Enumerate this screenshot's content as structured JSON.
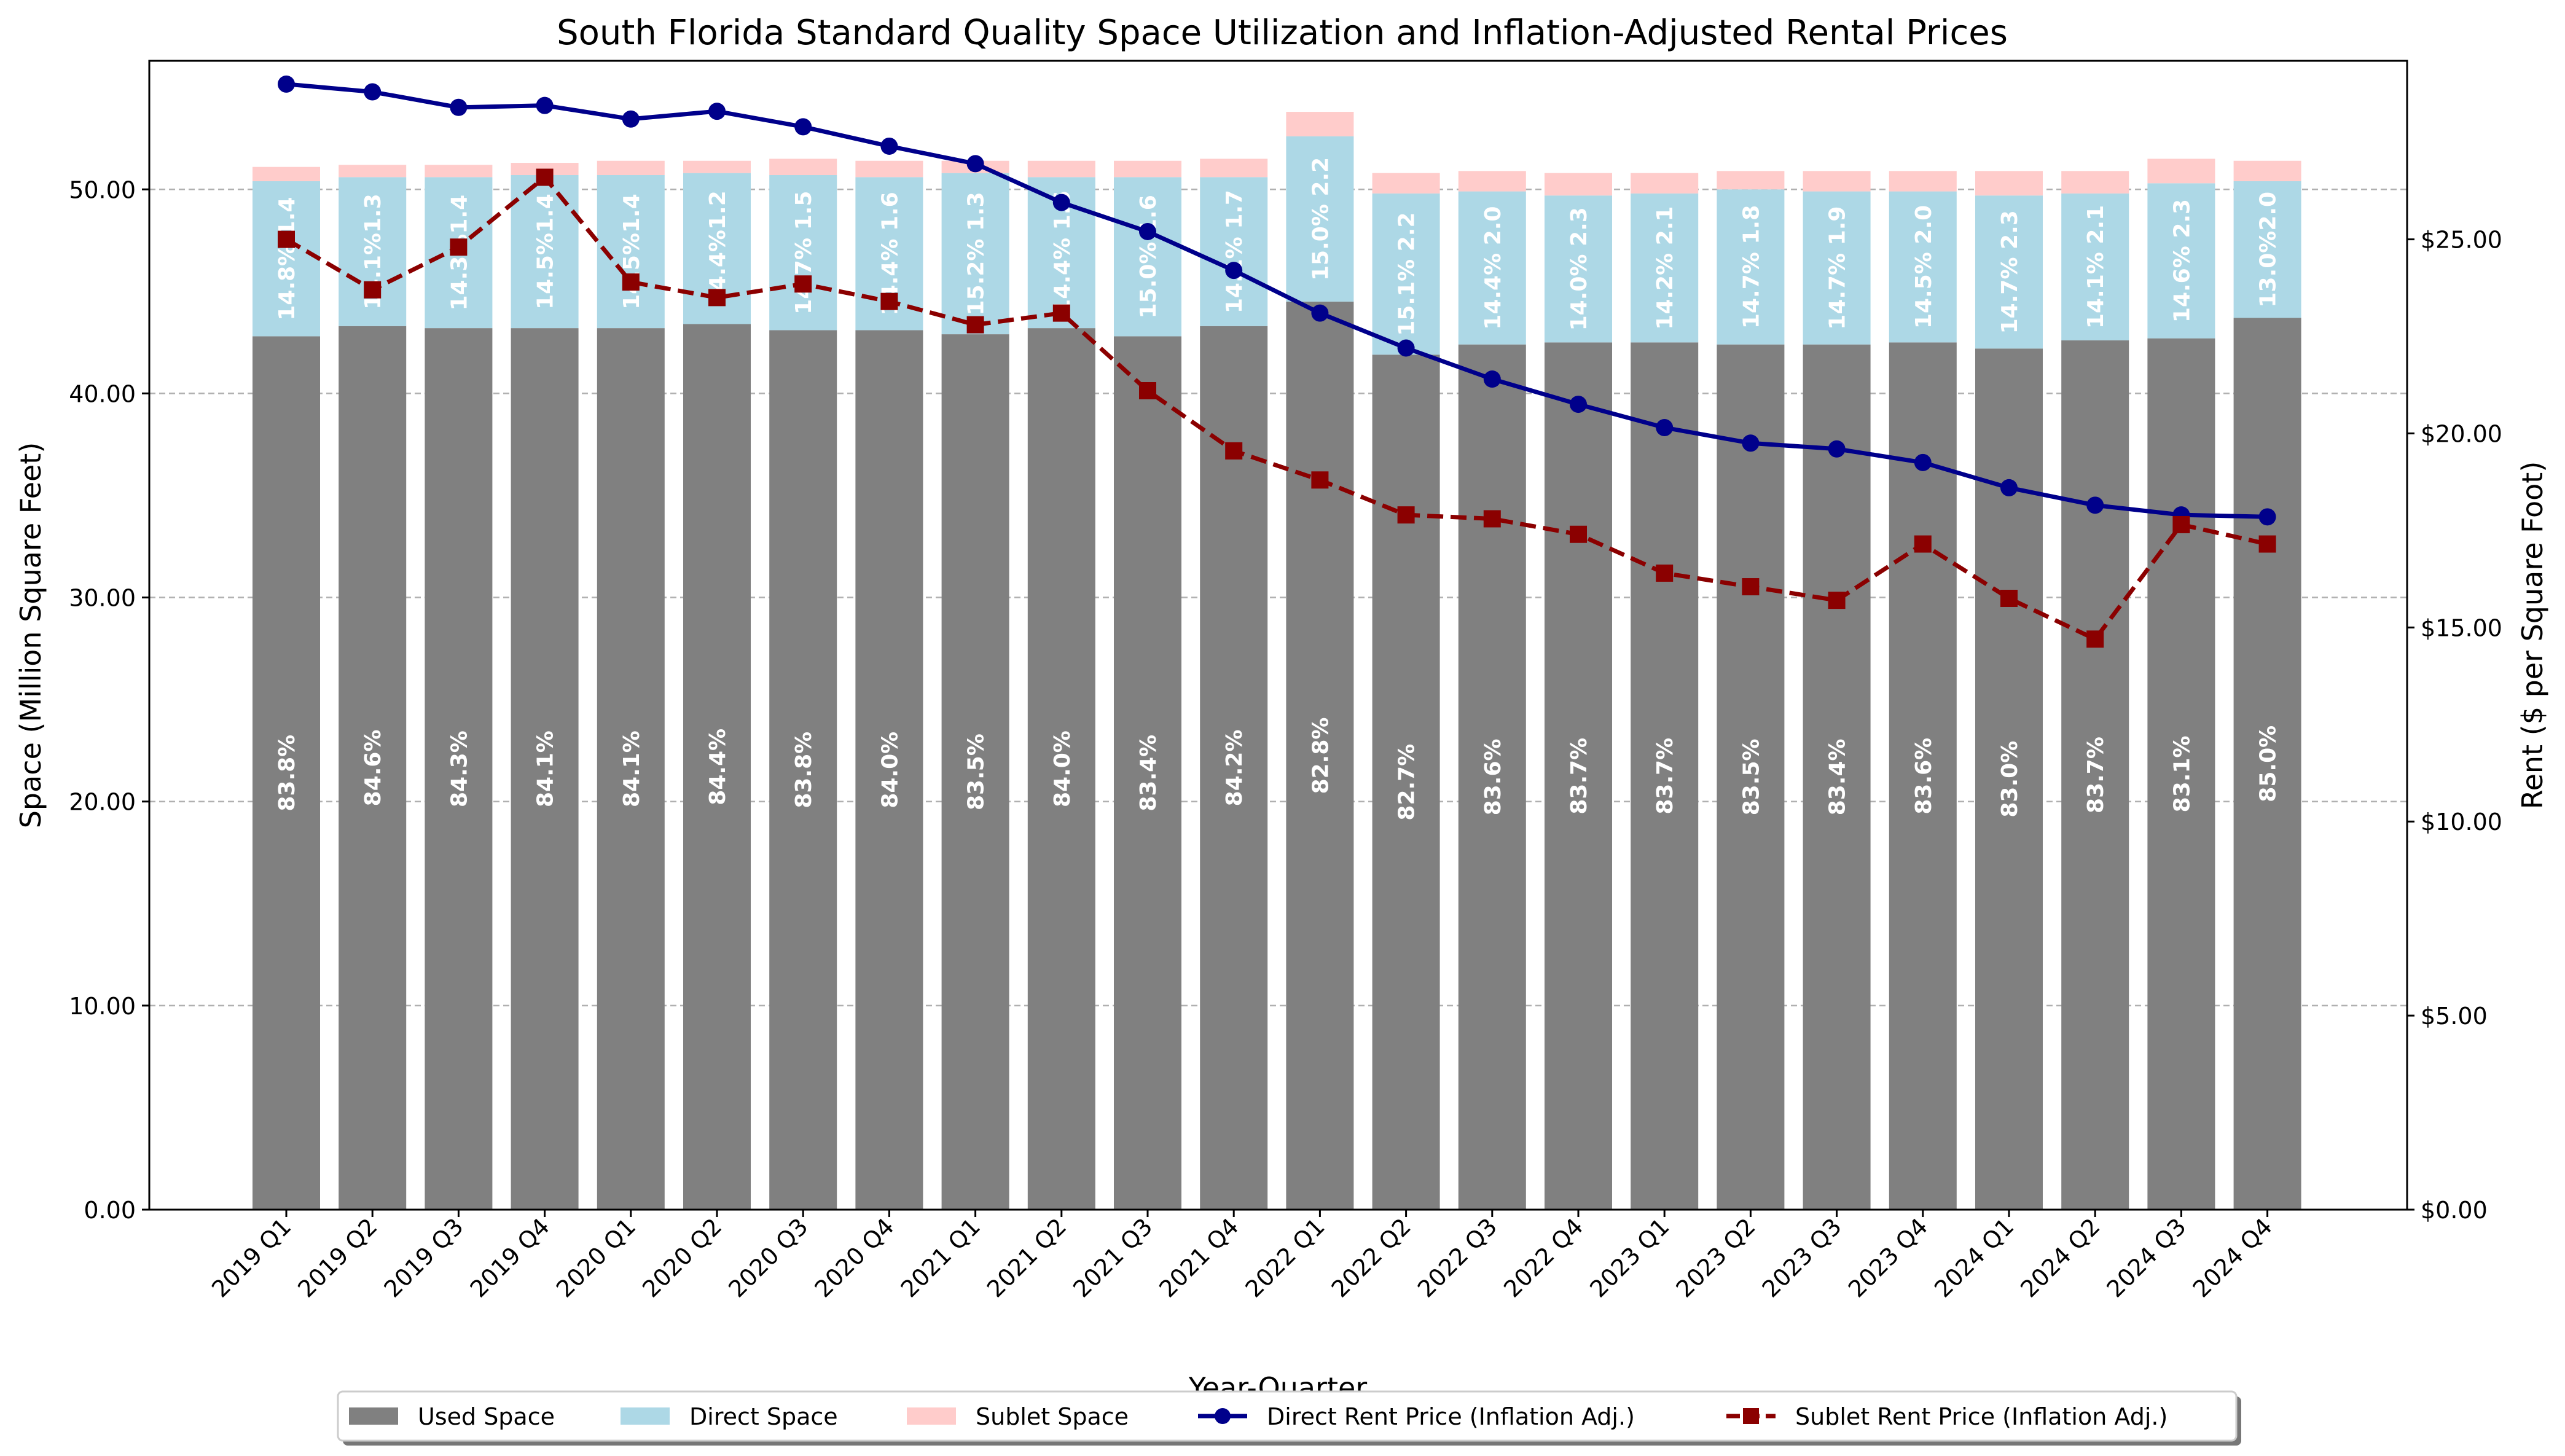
{
  "chart_data": {
    "type": "bar",
    "title": "South Florida Standard Quality Space Utilization and Inflation-Adjusted Rental Prices",
    "xlabel": "Year-Quarter",
    "ylabel": "Space (Million Square Feet)",
    "y2label": "Rent ($ per Square Foot)",
    "ylim": [
      0,
      56.3
    ],
    "y2lim": [
      0,
      29.6
    ],
    "yticks": [
      "0.00",
      "10.00",
      "20.00",
      "30.00",
      "40.00",
      "50.00"
    ],
    "y2ticks": [
      "$0.00",
      "$5.00",
      "$10.00",
      "$15.00",
      "$20.00",
      "$25.00"
    ],
    "grid": "horizontal dashed",
    "legend_position": "bottom-center",
    "categories": [
      "2019 Q1",
      "2019 Q2",
      "2019 Q3",
      "2019 Q4",
      "2020 Q1",
      "2020 Q2",
      "2020 Q3",
      "2020 Q4",
      "2021 Q1",
      "2021 Q2",
      "2021 Q3",
      "2021 Q4",
      "2022 Q1",
      "2022 Q2",
      "2022 Q3",
      "2022 Q4",
      "2023 Q1",
      "2023 Q2",
      "2023 Q3",
      "2023 Q4",
      "2024 Q1",
      "2024 Q2",
      "2024 Q3",
      "2024 Q4"
    ],
    "series": [
      {
        "name": "Used Space",
        "kind": "bar",
        "color": "#808080",
        "values": [
          42.8,
          43.3,
          43.2,
          43.2,
          43.2,
          43.4,
          43.1,
          43.1,
          42.9,
          43.2,
          42.8,
          43.3,
          44.5,
          41.9,
          42.4,
          42.5,
          42.5,
          42.4,
          42.4,
          42.5,
          42.2,
          42.6,
          42.7,
          43.7
        ],
        "labels": [
          "83.8%",
          "84.6%",
          "84.3%",
          "84.1%",
          "84.1%",
          "84.4%",
          "83.8%",
          "84.0%",
          "83.5%",
          "84.0%",
          "83.4%",
          "84.2%",
          "82.8%",
          "82.7%",
          "83.6%",
          "83.7%",
          "83.7%",
          "83.5%",
          "83.4%",
          "83.6%",
          "83.0%",
          "83.7%",
          "83.1%",
          "85.0%"
        ]
      },
      {
        "name": "Direct Space",
        "kind": "bar",
        "color": "#add8e6",
        "values": [
          7.6,
          7.3,
          7.4,
          7.5,
          7.5,
          7.4,
          7.6,
          7.5,
          7.9,
          7.4,
          7.8,
          7.3,
          8.1,
          7.9,
          7.5,
          7.2,
          7.3,
          7.6,
          7.5,
          7.4,
          7.5,
          7.2,
          7.6,
          6.7
        ],
        "labels": [
          "14.8% 1.4",
          "14.1%1.3",
          "14.3%1.4",
          "14.5%1.4",
          "14.5%1.4",
          "14.4%1.2",
          "14.7% 1.5",
          "14.4% 1.6",
          "15.2% 1.3",
          "14.4% 1.6",
          "15.0% 1.6",
          "14.1% 1.7",
          "15.0% 2.2",
          "15.1% 2.2",
          "14.4% 2.0",
          "14.0% 2.3",
          "14.2% 2.1",
          "14.7% 1.8",
          "14.7% 1.9",
          "14.5% 2.0",
          "14.7% 2.3",
          "14.1% 2.1",
          "14.6% 2.3",
          "13.0%2.0"
        ]
      },
      {
        "name": "Sublet Space",
        "kind": "bar",
        "color": "#ffcccb",
        "values": [
          0.7,
          0.6,
          0.6,
          0.6,
          0.7,
          0.6,
          0.8,
          0.8,
          0.6,
          0.8,
          0.8,
          0.9,
          1.2,
          1.0,
          1.0,
          1.1,
          1.0,
          0.9,
          1.0,
          1.0,
          1.2,
          1.1,
          1.2,
          1.0
        ]
      },
      {
        "name": "Direct Rent Price (Inflation Adj.)",
        "kind": "line",
        "axis": "right",
        "color": "#00008b",
        "values": [
          29.0,
          28.8,
          28.4,
          28.45,
          28.1,
          28.3,
          27.9,
          27.4,
          26.95,
          25.95,
          25.2,
          24.2,
          23.1,
          22.2,
          21.4,
          20.75,
          20.15,
          19.75,
          19.6,
          19.25,
          18.6,
          18.15,
          17.9,
          17.85
        ]
      },
      {
        "name": "Sublet Rent Price (Inflation Adj.)",
        "kind": "line",
        "axis": "right",
        "color": "#8b0000",
        "values": [
          25.0,
          23.7,
          24.8,
          26.6,
          23.9,
          23.5,
          23.85,
          23.4,
          22.8,
          23.1,
          21.1,
          19.55,
          18.8,
          17.9,
          17.8,
          17.4,
          16.4,
          16.05,
          15.7,
          17.15,
          15.75,
          14.7,
          17.65,
          17.15
        ]
      }
    ]
  }
}
